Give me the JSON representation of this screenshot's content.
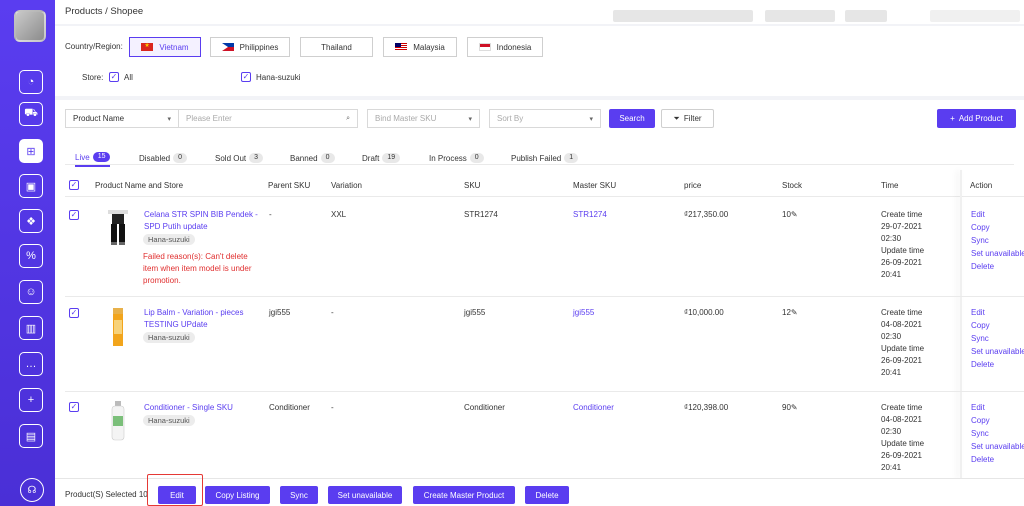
{
  "breadcrumb": "Products / Shopee",
  "region": {
    "label": "Country/Region:",
    "countries": [
      {
        "name": "Vietnam",
        "flag": "vn",
        "selected": true
      },
      {
        "name": "Philippines",
        "flag": "ph",
        "selected": false
      },
      {
        "name": "Thailand",
        "flag": "th",
        "selected": false
      },
      {
        "name": "Malaysia",
        "flag": "my",
        "selected": false
      },
      {
        "name": "Indonesia",
        "flag": "id",
        "selected": false
      }
    ],
    "store_label": "Store:",
    "stores": [
      "All",
      "Hana-suzuki"
    ]
  },
  "filters": {
    "field_select": "Product Name",
    "search_placeholder": "Please Enter",
    "master_sku_placeholder": "Bind Master SKU",
    "sort_placeholder": "Sort By",
    "search_button": "Search",
    "filter_button": "Filter",
    "add_product_button": "Add Product"
  },
  "tabs": [
    {
      "label": "Live",
      "count": "15",
      "active": true
    },
    {
      "label": "Disabled",
      "count": "0"
    },
    {
      "label": "Sold Out",
      "count": "3"
    },
    {
      "label": "Banned",
      "count": "0"
    },
    {
      "label": "Draft",
      "count": "19"
    },
    {
      "label": "In Process",
      "count": "0"
    },
    {
      "label": "Publish Failed",
      "count": "1"
    }
  ],
  "table": {
    "columns": [
      "Product Name and Store",
      "Parent SKU",
      "Variation",
      "SKU",
      "Master SKU",
      "price",
      "Stock",
      "Time",
      "Action"
    ],
    "rows": [
      {
        "name": "Celana STR SPIN BIB Pendek - SPD Putih update",
        "store": "Hana-suzuki",
        "error": "Failed reason(s): Can't delete item when item model is under promotion.",
        "parent_sku": "-",
        "variation": "XXL",
        "sku": "STR1274",
        "master_sku": "STR1274",
        "price": "₫217,350.00",
        "stock": "10",
        "create_label": "Create time",
        "create_date": "29-07-2021",
        "create_time": "02:30",
        "update_label": "Update time",
        "update_date": "26-09-2021",
        "update_time": "20:41"
      },
      {
        "name": "Lip Balm - Variation - pieces TESTING UPdate",
        "store": "Hana-suzuki",
        "error": "",
        "parent_sku": "jgi555",
        "variation": "-",
        "sku": "jgi555",
        "master_sku": "jgi555",
        "price": "₫10,000.00",
        "stock": "12",
        "create_label": "Create time",
        "create_date": "04-08-2021",
        "create_time": "02:30",
        "update_label": "Update time",
        "update_date": "26-09-2021",
        "update_time": "20:41"
      },
      {
        "name": "Conditioner - Single SKU",
        "store": "Hana-suzuki",
        "error": "",
        "parent_sku": "Conditioner",
        "variation": "-",
        "sku": "Conditioner",
        "master_sku": "Conditioner",
        "price": "₫120,398.00",
        "stock": "90",
        "create_label": "Create time",
        "create_date": "04-08-2021",
        "create_time": "02:30",
        "update_label": "Update time",
        "update_date": "26-09-2021",
        "update_time": "20:41"
      }
    ],
    "actions": [
      "Edit",
      "Copy",
      "Sync",
      "Set unavailable",
      "Delete"
    ]
  },
  "bottom": {
    "selected_text": "Product(S) Selected 10",
    "buttons": [
      "Edit",
      "Copy Listing",
      "Sync",
      "Set unavailable",
      "Create Master Product",
      "Delete"
    ]
  },
  "colors": {
    "accent": "#5a3df0",
    "error": "#e02f2f",
    "highlight": "#e53935"
  }
}
